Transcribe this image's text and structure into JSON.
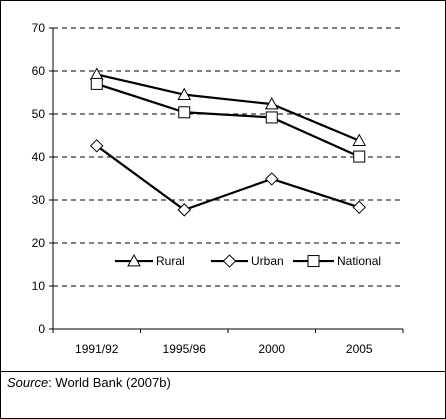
{
  "chart_data": {
    "type": "line",
    "categories": [
      "1991/92",
      "1995/96",
      "2000",
      "2005"
    ],
    "series": [
      {
        "name": "Rural",
        "values": [
          59.2,
          54.5,
          52.3,
          43.8
        ],
        "marker": "triangle"
      },
      {
        "name": "Urban",
        "values": [
          42.6,
          27.7,
          34.9,
          28.3
        ],
        "marker": "diamond"
      },
      {
        "name": "National",
        "values": [
          57.0,
          50.4,
          49.2,
          40.1
        ],
        "marker": "square"
      }
    ],
    "ylim": [
      0,
      70
    ],
    "yticks": [
      "0",
      "10",
      "20",
      "30",
      "40",
      "50",
      "60",
      "70"
    ],
    "grid": true,
    "grid_style": "dashed",
    "legend_position": "inside-bottom",
    "title": "",
    "xlabel": "",
    "ylabel": "",
    "line_color": "#000000",
    "marker_fill": "#ffffff"
  },
  "footer": {
    "source_label": "Source",
    "source_text": ": World Bank (2007b)"
  }
}
